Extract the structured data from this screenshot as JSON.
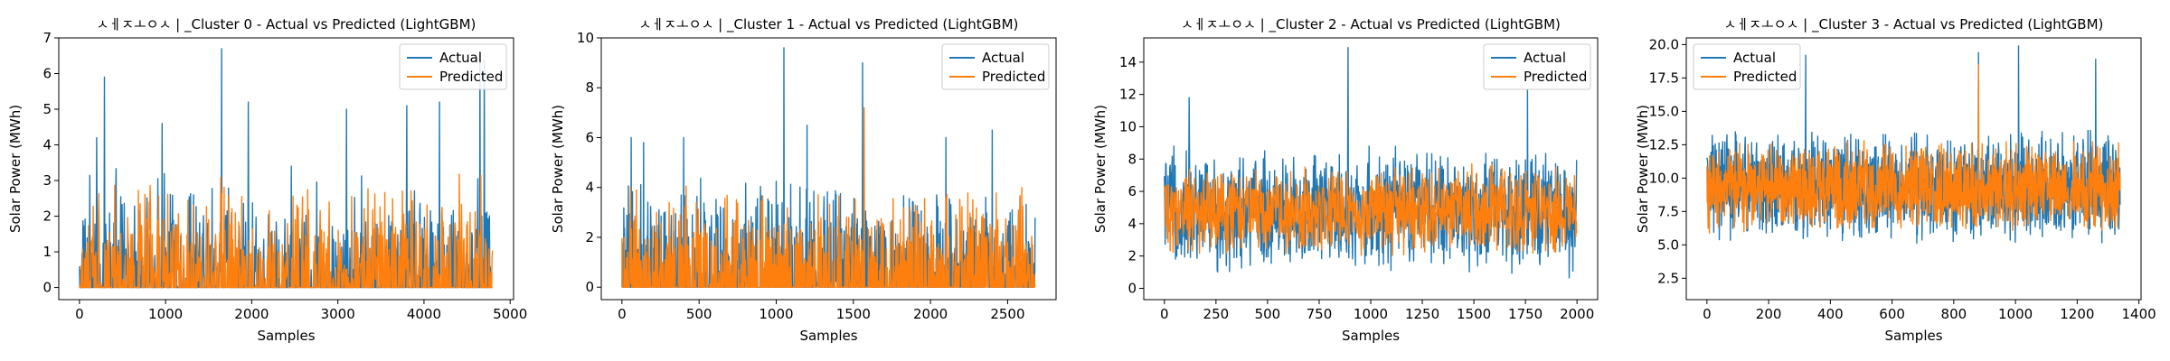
{
  "colors": {
    "actual": "#1f77b4",
    "predicted": "#ff7f0e"
  },
  "chart_data": [
    {
      "type": "line",
      "title": "ㅅㅔㅈㅗㅇㅅ | _Cluster 0 - Actual vs Predicted (LightGBM)",
      "xlabel": "Samples",
      "ylabel": "Solar Power (MWh)",
      "xlim": [
        -240,
        5040
      ],
      "ylim": [
        -0.34,
        7.0
      ],
      "xticks": [
        0,
        1000,
        2000,
        3000,
        4000,
        5000
      ],
      "xtick_labels": [
        "0",
        "1000",
        "2000",
        "3000",
        "4000",
        "5000"
      ],
      "yticks": [
        0,
        1,
        2,
        3,
        4,
        5,
        6,
        7
      ],
      "ytick_labels": [
        "0",
        "1",
        "2",
        "3",
        "4",
        "5",
        "6",
        "7"
      ],
      "n_samples": 4800,
      "legend": {
        "placement": "upper right",
        "entries": [
          "Actual",
          "Predicted"
        ]
      },
      "series": [
        {
          "name": "Actual",
          "range": [
            0,
            6.7
          ],
          "typical_max": 3.5,
          "peaks": [
            [
              200,
              4.2
            ],
            [
              290,
              5.9
            ],
            [
              960,
              4.6
            ],
            [
              1650,
              6.7
            ],
            [
              1960,
              5.2
            ],
            [
              3100,
              5.0
            ],
            [
              3800,
              5.1
            ],
            [
              4180,
              5.2
            ],
            [
              4650,
              6.6
            ],
            [
              4700,
              6.4
            ]
          ]
        },
        {
          "name": "Predicted",
          "range": [
            0,
            4.2
          ],
          "typical_max": 3.3,
          "peaks": []
        }
      ]
    },
    {
      "type": "line",
      "title": "ㅅㅔㅈㅗㅇㅅ | _Cluster 1 - Actual vs Predicted (LightGBM)",
      "xlabel": "Samples",
      "ylabel": "Solar Power (MWh)",
      "xlim": [
        -134,
        2814
      ],
      "ylim": [
        -0.5,
        10.0
      ],
      "xticks": [
        0,
        500,
        1000,
        1500,
        2000,
        2500
      ],
      "xtick_labels": [
        "0",
        "500",
        "1000",
        "1500",
        "2000",
        "2500"
      ],
      "yticks": [
        0,
        2,
        4,
        6,
        8,
        10
      ],
      "ytick_labels": [
        "0",
        "2",
        "4",
        "6",
        "8",
        "10"
      ],
      "n_samples": 2680,
      "legend": {
        "placement": "upper right",
        "entries": [
          "Actual",
          "Predicted"
        ]
      },
      "series": [
        {
          "name": "Actual",
          "range": [
            0,
            9.6
          ],
          "typical_max": 4.5,
          "peaks": [
            [
              60,
              6.0
            ],
            [
              140,
              5.8
            ],
            [
              400,
              6.0
            ],
            [
              1050,
              9.6
            ],
            [
              1200,
              6.5
            ],
            [
              1560,
              9.0
            ],
            [
              2100,
              6.0
            ],
            [
              2400,
              6.3
            ]
          ]
        },
        {
          "name": "Predicted",
          "range": [
            0,
            7.2
          ],
          "typical_max": 4.2,
          "peaks": [
            [
              1570,
              7.2
            ]
          ]
        }
      ]
    },
    {
      "type": "line",
      "title": "ㅅㅔㅈㅗㅇㅅ | _Cluster 2 - Actual vs Predicted (LightGBM)",
      "xlabel": "Samples",
      "ylabel": "Solar Power (MWh)",
      "xlim": [
        -100,
        2100
      ],
      "ylim": [
        -0.7,
        15.5
      ],
      "xticks": [
        0,
        250,
        500,
        750,
        1000,
        1250,
        1500,
        1750,
        2000
      ],
      "xtick_labels": [
        "0",
        "250",
        "500",
        "750",
        "1000",
        "1250",
        "1500",
        "1750",
        "2000"
      ],
      "yticks": [
        0,
        2,
        4,
        6,
        8,
        10,
        12,
        14
      ],
      "ytick_labels": [
        "0",
        "2",
        "4",
        "6",
        "8",
        "10",
        "12",
        "14"
      ],
      "n_samples": 2000,
      "legend": {
        "placement": "upper right",
        "entries": [
          "Actual",
          "Predicted"
        ]
      },
      "series": [
        {
          "name": "Actual",
          "range": [
            0,
            14.9
          ],
          "center": 4.8,
          "spread": 4.2,
          "peaks": [
            [
              890,
              14.9
            ],
            [
              1760,
              12.3
            ],
            [
              120,
              11.8
            ]
          ]
        },
        {
          "name": "Predicted",
          "range": [
            1.0,
            10.8
          ],
          "center": 4.8,
          "spread": 3.0,
          "peaks": []
        }
      ]
    },
    {
      "type": "line",
      "title": "ㅅㅔㅈㅗㅇㅅ | _Cluster 3 - Actual vs Predicted (LightGBM)",
      "xlabel": "Samples",
      "ylabel": "Solar Power (MWh)",
      "xlim": [
        -67,
        1407
      ],
      "ylim": [
        0.9,
        20.5
      ],
      "xticks": [
        0,
        200,
        400,
        600,
        800,
        1000,
        1200,
        1400
      ],
      "xtick_labels": [
        "0",
        "200",
        "400",
        "600",
        "800",
        "1000",
        "1200",
        "1400"
      ],
      "yticks": [
        2.5,
        5.0,
        7.5,
        10.0,
        12.5,
        15.0,
        17.5,
        20.0
      ],
      "ytick_labels": [
        "2.5",
        "5.0",
        "7.5",
        "10.0",
        "12.5",
        "15.0",
        "17.5",
        "20.0"
      ],
      "n_samples": 1340,
      "legend": {
        "placement": "upper left",
        "entries": [
          "Actual",
          "Predicted"
        ]
      },
      "series": [
        {
          "name": "Actual",
          "range": [
            2.9,
            19.9
          ],
          "center": 9.3,
          "spread": 4.5,
          "peaks": [
            [
              320,
              19.2
            ],
            [
              1010,
              19.9
            ],
            [
              880,
              19.4
            ],
            [
              1260,
              18.9
            ]
          ]
        },
        {
          "name": "Predicted",
          "range": [
            3.3,
            18.5
          ],
          "center": 9.3,
          "spread": 3.6,
          "peaks": [
            [
              880,
              18.5
            ]
          ]
        }
      ]
    }
  ]
}
